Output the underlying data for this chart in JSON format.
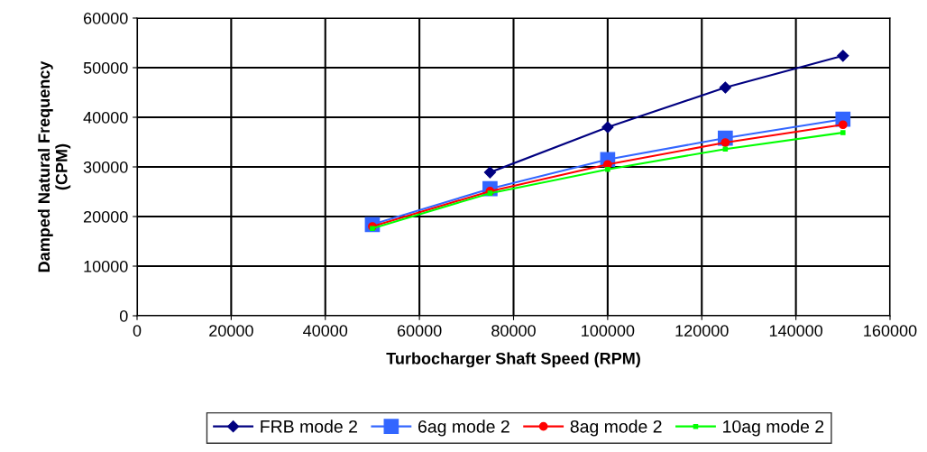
{
  "chart_data": {
    "type": "line",
    "xlabel": "Turbocharger Shaft Speed (RPM)",
    "ylabel": "Damped Natural Frequency\n(CPM)",
    "x": [
      50000,
      75000,
      100000,
      125000,
      150000
    ],
    "series": [
      {
        "name": "FRB mode 2",
        "color": "#000080",
        "marker": "diamond",
        "values": [
          null,
          28900,
          38000,
          46000,
          52400
        ]
      },
      {
        "name": "6ag mode 2",
        "color": "#3366ff",
        "marker": "square",
        "values": [
          18400,
          25600,
          31500,
          35800,
          39600
        ]
      },
      {
        "name": "8ag mode 2",
        "color": "#ff0000",
        "marker": "circle",
        "values": [
          18000,
          25100,
          30500,
          34900,
          38500
        ]
      },
      {
        "name": "10ag mode 2",
        "color": "#00ff00",
        "marker": "square",
        "values": [
          17600,
          24700,
          29500,
          33600,
          36900
        ]
      }
    ],
    "xlim": [
      0,
      160000
    ],
    "xticks": [
      0,
      20000,
      40000,
      60000,
      80000,
      100000,
      120000,
      140000,
      160000
    ],
    "ylim": [
      0,
      60000
    ],
    "yticks": [
      0,
      10000,
      20000,
      30000,
      40000,
      50000,
      60000
    ],
    "grid": true,
    "legend": "bottom",
    "line_style": "solid"
  }
}
